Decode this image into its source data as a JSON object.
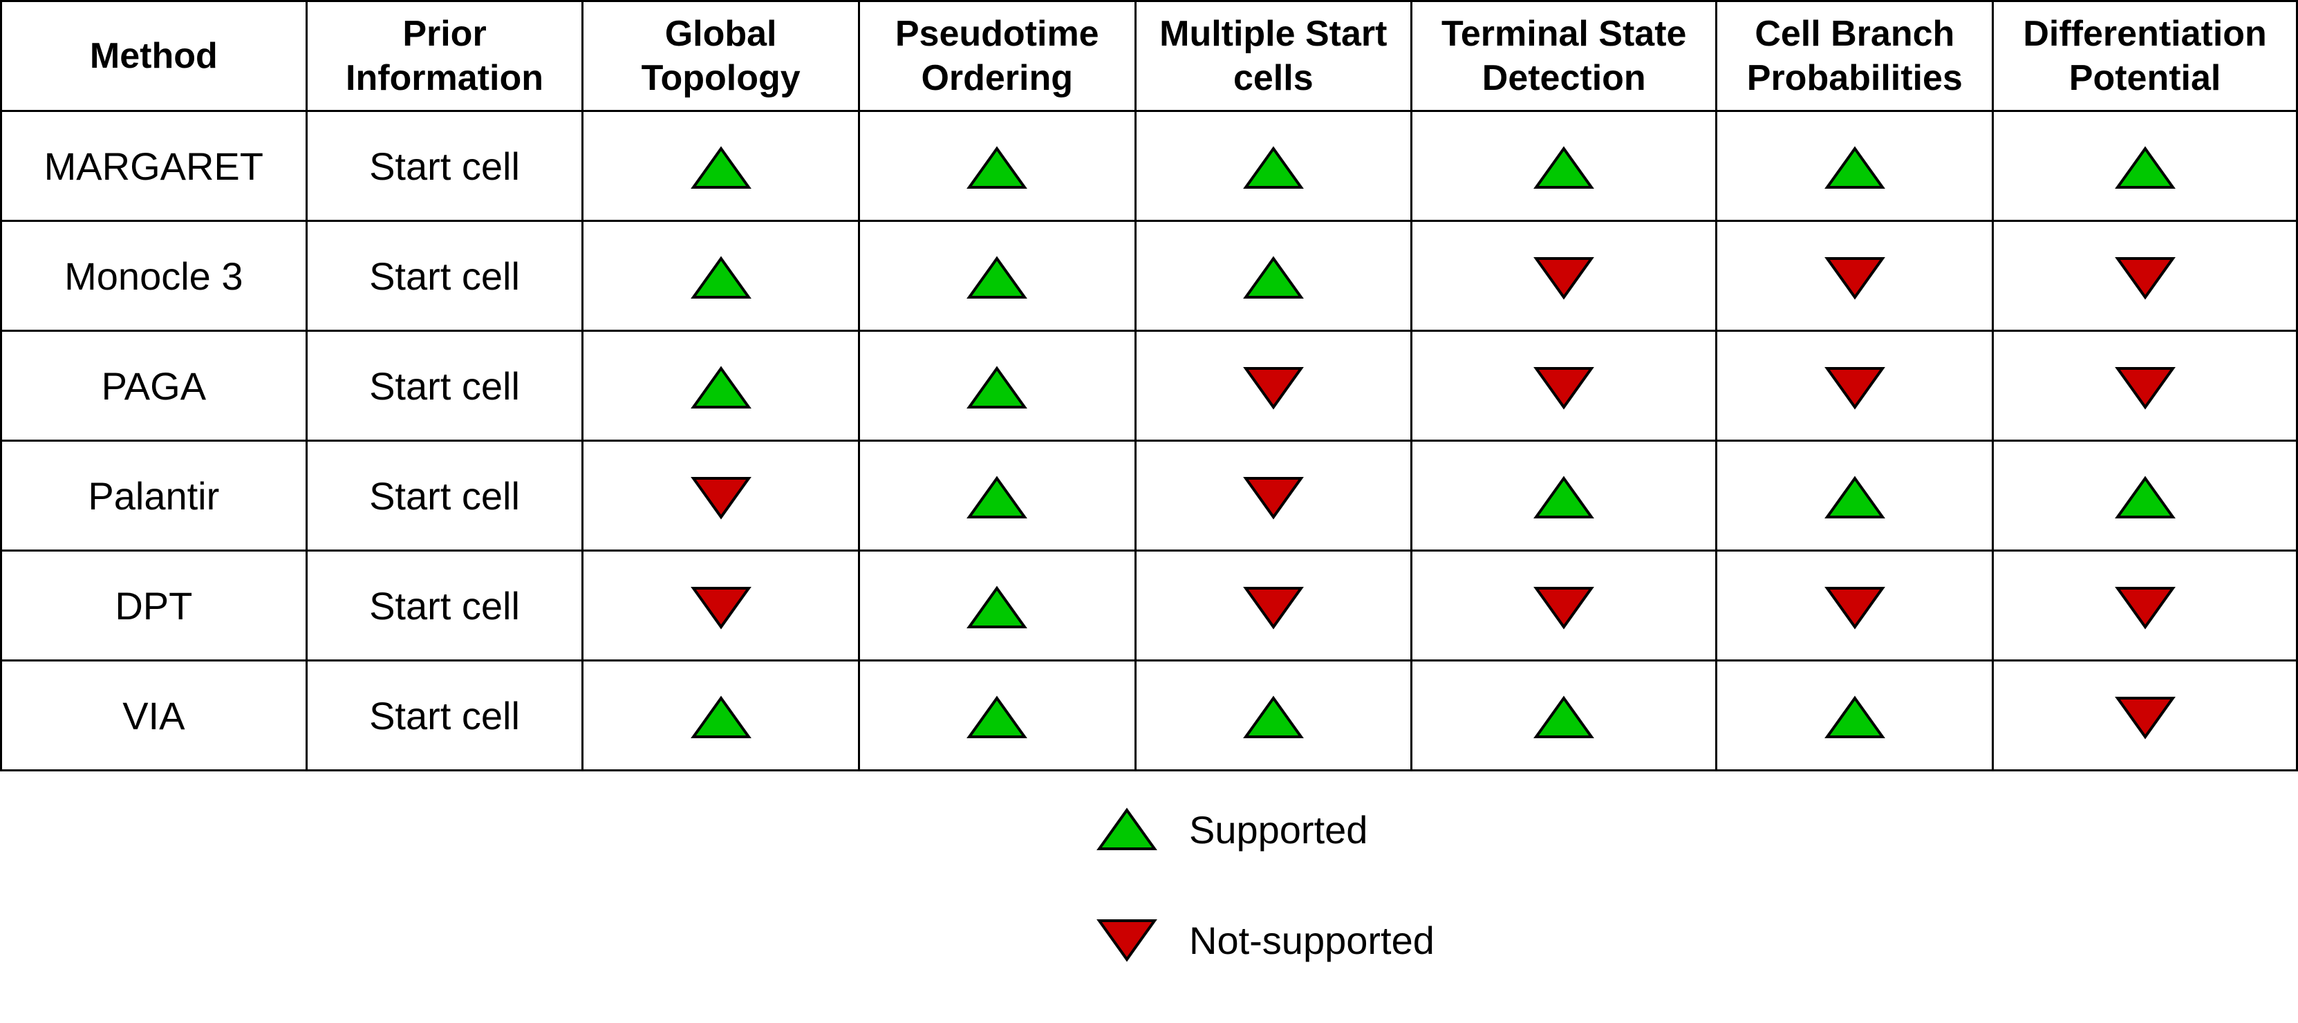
{
  "table": {
    "columns": [
      "Method",
      "Prior Information",
      "Global Topology",
      "Pseudotime Ordering",
      "Multiple Start cells",
      "Terminal State Detection",
      "Cell Branch Probabilities",
      "Differentiation Potential"
    ],
    "rows": [
      {
        "method": "MARGARET",
        "prior": "Start cell",
        "support": [
          "supported",
          "supported",
          "supported",
          "supported",
          "supported",
          "supported"
        ]
      },
      {
        "method": "Monocle 3",
        "prior": "Start cell",
        "support": [
          "supported",
          "supported",
          "supported",
          "not-supported",
          "not-supported",
          "not-supported"
        ]
      },
      {
        "method": "PAGA",
        "prior": "Start cell",
        "support": [
          "supported",
          "supported",
          "not-supported",
          "not-supported",
          "not-supported",
          "not-supported"
        ]
      },
      {
        "method": "Palantir",
        "prior": "Start cell",
        "support": [
          "not-supported",
          "supported",
          "not-supported",
          "supported",
          "supported",
          "supported"
        ]
      },
      {
        "method": "DPT",
        "prior": "Start cell",
        "support": [
          "not-supported",
          "supported",
          "not-supported",
          "not-supported",
          "not-supported",
          "not-supported"
        ]
      },
      {
        "method": "VIA",
        "prior": "Start cell",
        "support": [
          "supported",
          "supported",
          "supported",
          "supported",
          "supported",
          "not-supported"
        ]
      }
    ]
  },
  "legend": {
    "supported_label": "Supported",
    "not_supported_label": "Not-supported"
  },
  "colors": {
    "supported": "#00c800",
    "not_supported": "#cc0000",
    "outline": "#000000"
  },
  "icons": {
    "supported": "triangle-up-icon",
    "not_supported": "triangle-down-icon"
  }
}
